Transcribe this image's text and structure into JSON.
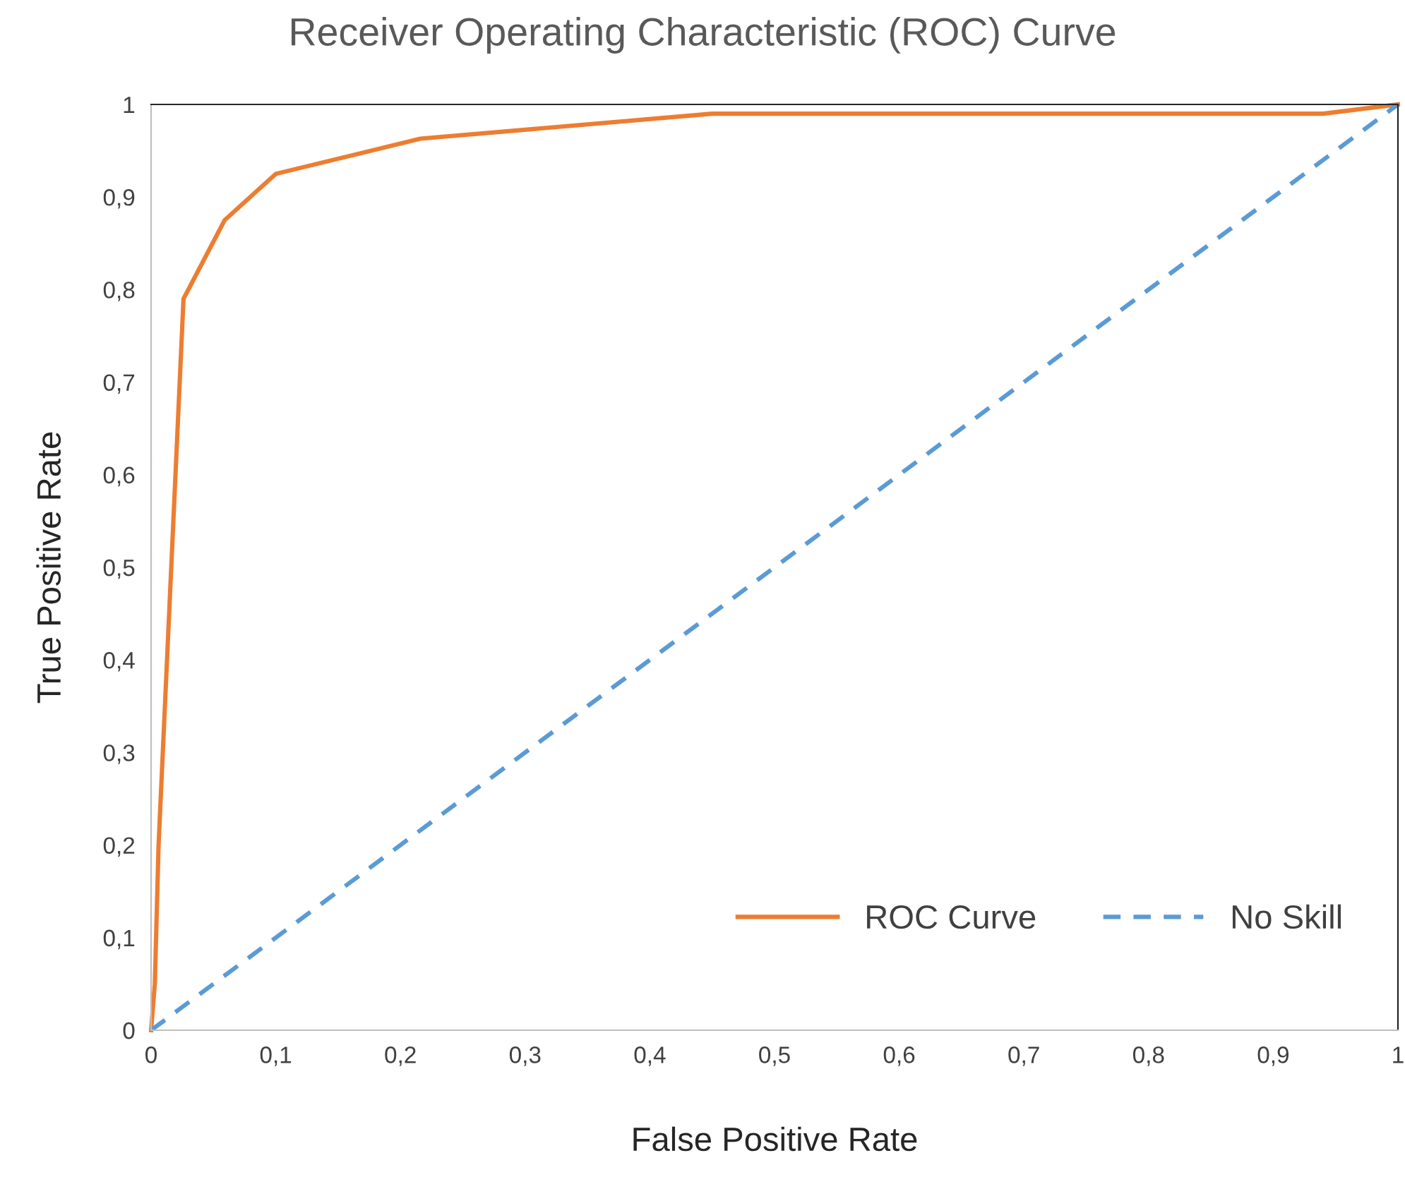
{
  "chart_data": {
    "type": "line",
    "title": "Receiver Operating Characteristic (ROC) Curve",
    "xlabel": "False Positive Rate",
    "ylabel": "True Positive Rate",
    "series": [
      {
        "name": "ROC Curve",
        "color": "#ed7d31",
        "line_style": "solid",
        "x": [
          0,
          0.003,
          0.006,
          0.026,
          0.059,
          0.1,
          0.216,
          0.45,
          0.94,
          1
        ],
        "values": [
          0,
          0.05,
          0.2,
          0.79,
          0.875,
          0.925,
          0.963,
          0.99,
          0.99,
          1
        ]
      },
      {
        "name": "No Skill",
        "color": "#5b9bd5",
        "line_style": "dashed",
        "x": [
          0,
          1
        ],
        "values": [
          0,
          1
        ]
      }
    ],
    "xlim": [
      0,
      1
    ],
    "ylim": [
      0,
      1
    ],
    "xticks": [
      0,
      {
        "value": 0.1,
        "label": "0,1"
      },
      {
        "value": 0.2,
        "label": "0,2"
      },
      {
        "value": 0.3,
        "label": "0,3"
      },
      {
        "value": 0.4,
        "label": "0,4"
      },
      {
        "value": 0.5,
        "label": "0,5"
      },
      {
        "value": 0.6,
        "label": "0,6"
      },
      {
        "value": 0.7,
        "label": "0,7"
      },
      {
        "value": 0.8,
        "label": "0,8"
      },
      {
        "value": 0.9,
        "label": "0,9"
      },
      1
    ],
    "yticks": [
      0,
      {
        "value": 0.1,
        "label": "0,1"
      },
      {
        "value": 0.2,
        "label": "0,2"
      },
      {
        "value": 0.3,
        "label": "0,3"
      },
      {
        "value": 0.4,
        "label": "0,4"
      },
      {
        "value": 0.5,
        "label": "0,5"
      },
      {
        "value": 0.6,
        "label": "0,6"
      },
      {
        "value": 0.7,
        "label": "0,7"
      },
      {
        "value": 0.8,
        "label": "0,8"
      },
      {
        "value": 0.9,
        "label": "0,9"
      },
      1
    ],
    "grid": false,
    "legend": "bottom right",
    "marker": "none"
  }
}
